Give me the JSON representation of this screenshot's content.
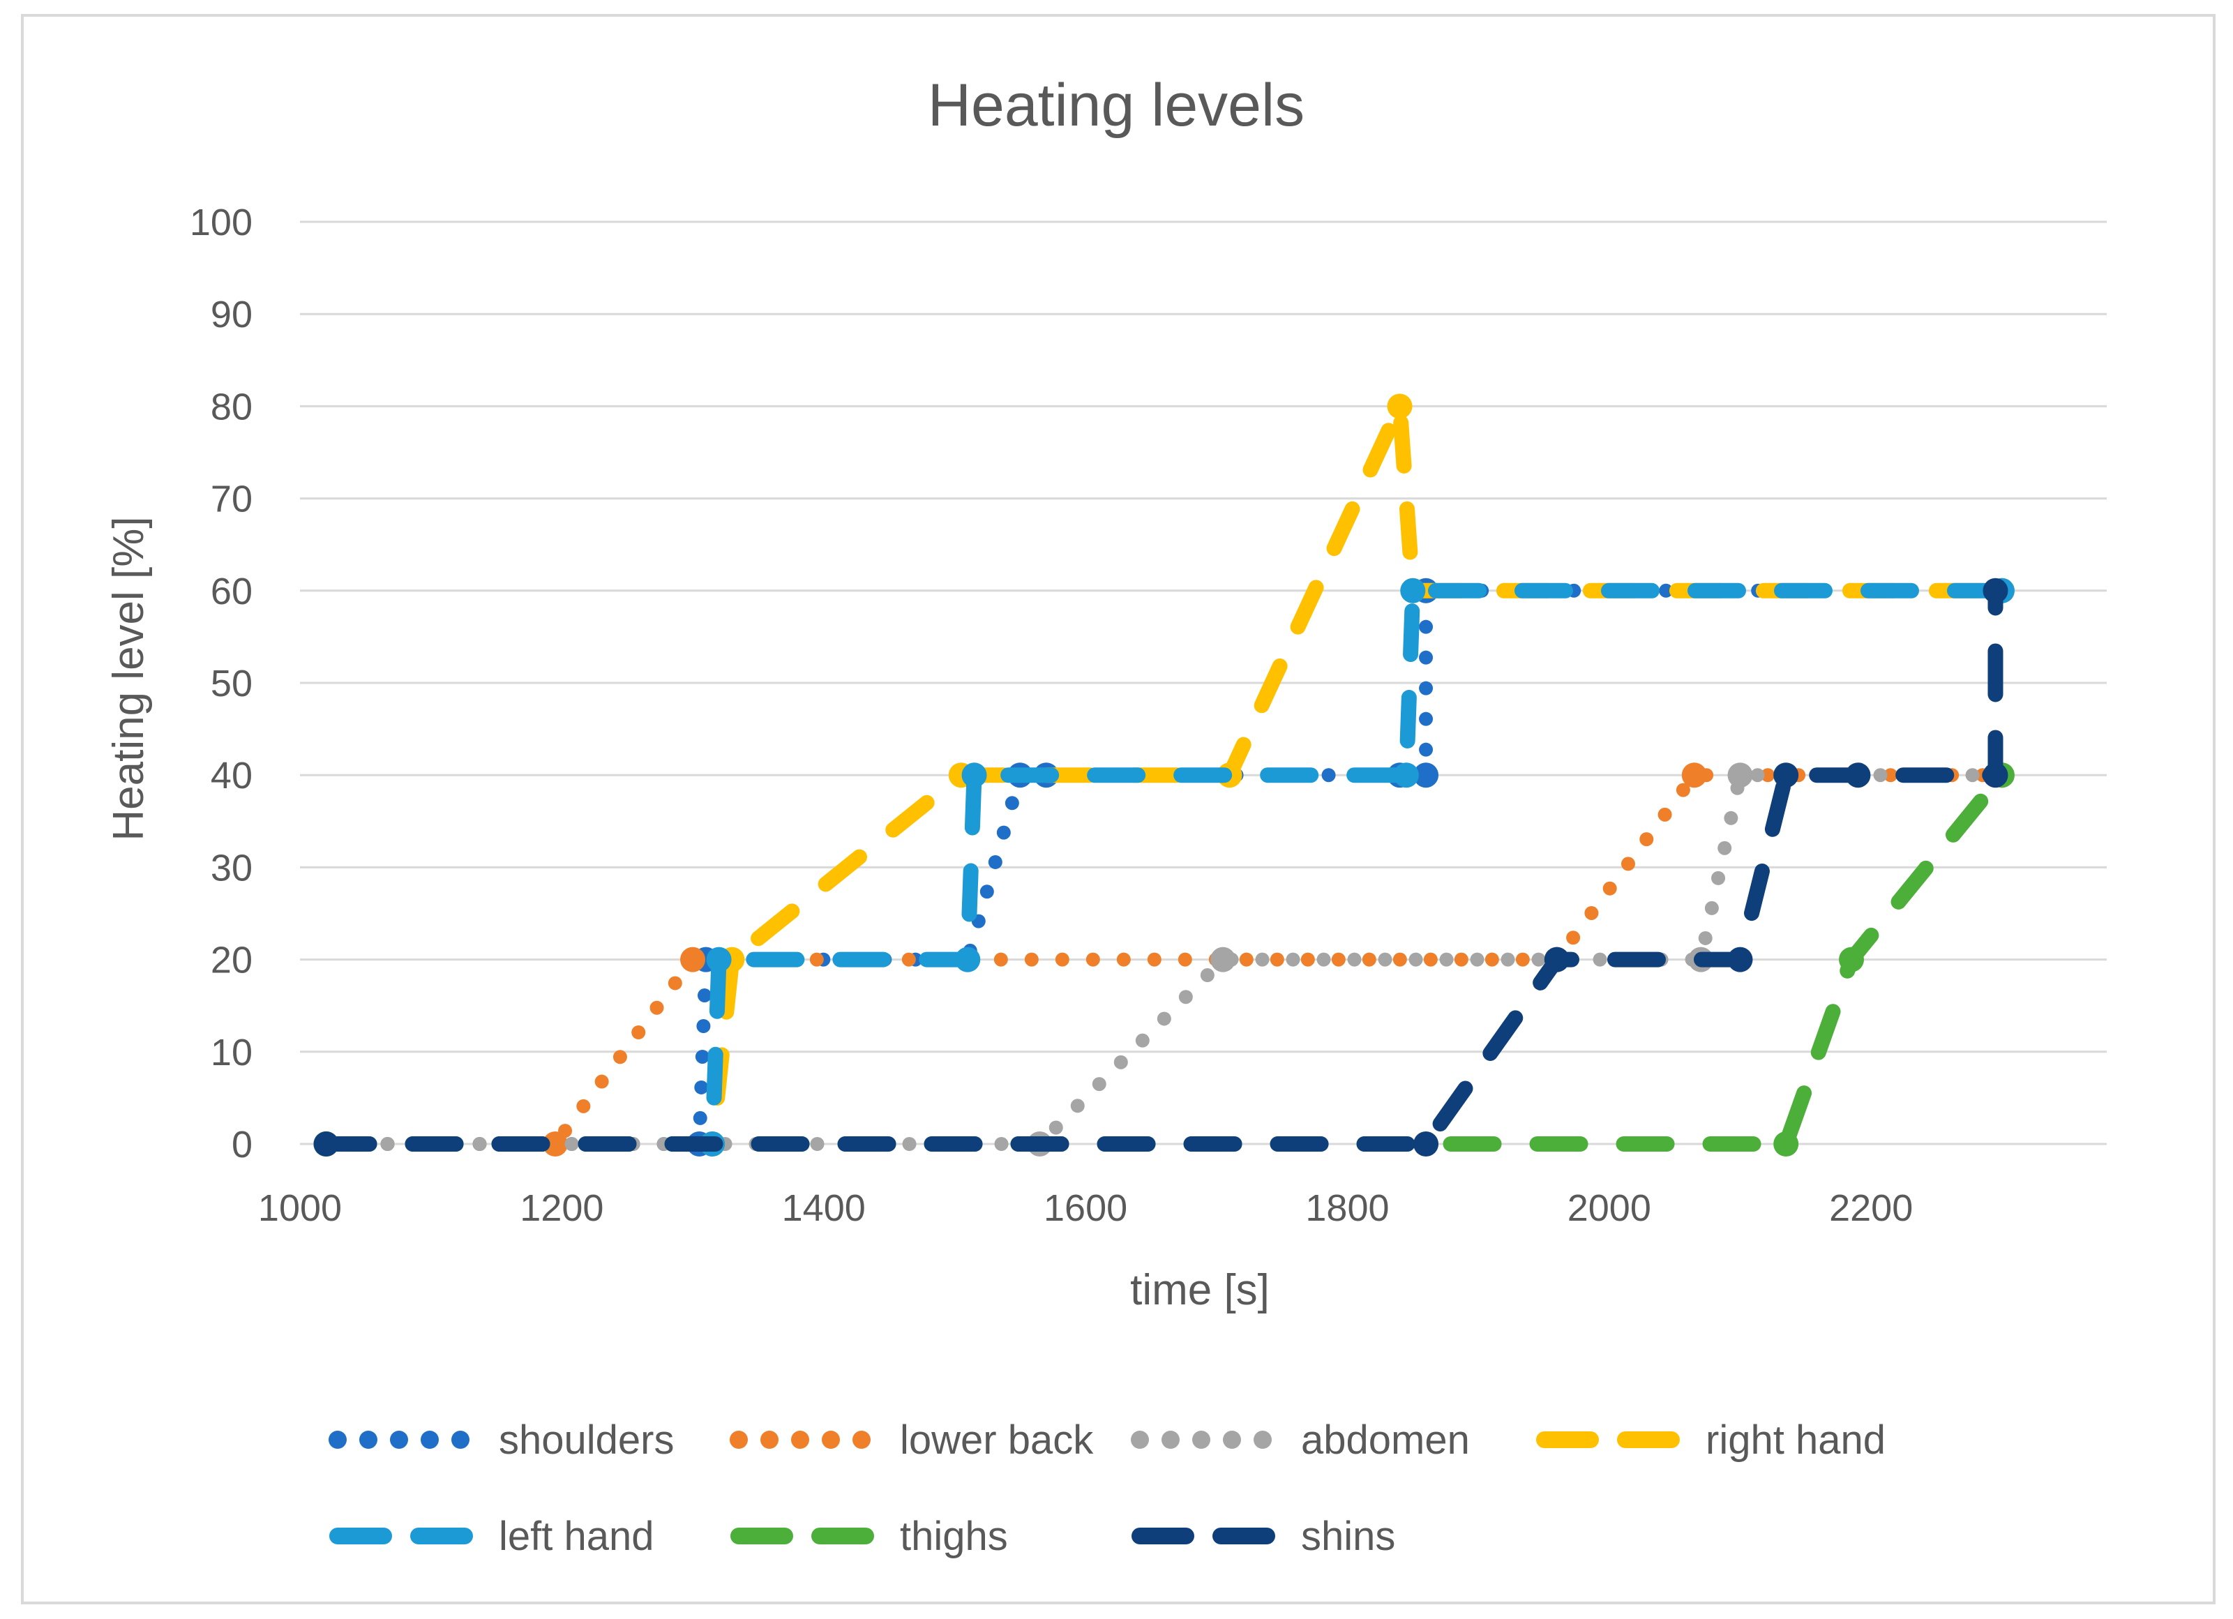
{
  "chart_data": {
    "type": "line",
    "title": "Heating levels",
    "xlabel": "time [s]",
    "ylabel": "Heating level [%]",
    "xlim": [
      1000,
      2380
    ],
    "ylim": [
      0,
      100
    ],
    "x_ticks": [
      1000,
      1200,
      1400,
      1600,
      1800,
      2000,
      2200
    ],
    "y_ticks": [
      0,
      10,
      20,
      30,
      40,
      50,
      60,
      70,
      80,
      90,
      100
    ],
    "grid": true,
    "legend_position": "bottom",
    "series": [
      {
        "name": "shoulders",
        "color": "#1F6FC8",
        "style": "dot",
        "x": [
          1020,
          1305,
          1310,
          1510,
          1550,
          1570,
          1840,
          1860,
          1860,
          2300
        ],
        "y": [
          0,
          0,
          20,
          20,
          40,
          40,
          40,
          40,
          60,
          60
        ]
      },
      {
        "name": "lower back",
        "color": "#F07F2A",
        "style": "dot",
        "x": [
          1020,
          1195,
          1300,
          1960,
          2065,
          2300
        ],
        "y": [
          0,
          0,
          20,
          20,
          40,
          40
        ]
      },
      {
        "name": "abdomen",
        "color": "#A5A5A5",
        "style": "dot",
        "x": [
          1020,
          1565,
          1705,
          2070,
          2100,
          2300
        ],
        "y": [
          0,
          0,
          20,
          20,
          40,
          40
        ]
      },
      {
        "name": "right hand",
        "color": "#FFC000",
        "style": "dash",
        "x": [
          1020,
          1315,
          1330,
          1505,
          1710,
          1840,
          1850,
          2300
        ],
        "y": [
          0,
          0,
          20,
          40,
          40,
          80,
          60,
          60
        ]
      },
      {
        "name": "left hand",
        "color": "#1B9AD6",
        "style": "dash",
        "x": [
          1020,
          1315,
          1320,
          1510,
          1515,
          1845,
          1850,
          2300
        ],
        "y": [
          0,
          0,
          20,
          20,
          40,
          40,
          60,
          60
        ]
      },
      {
        "name": "thighs",
        "color": "#4CAF3A",
        "style": "dash",
        "x": [
          1020,
          2135,
          2185,
          2300
        ],
        "y": [
          0,
          0,
          20,
          40
        ]
      },
      {
        "name": "shins",
        "color": "#0E3F7A",
        "style": "dash",
        "x": [
          1020,
          1860,
          1960,
          2100,
          2135,
          2190,
          2295,
          2295
        ],
        "y": [
          0,
          0,
          20,
          20,
          40,
          40,
          40,
          60
        ]
      }
    ]
  }
}
